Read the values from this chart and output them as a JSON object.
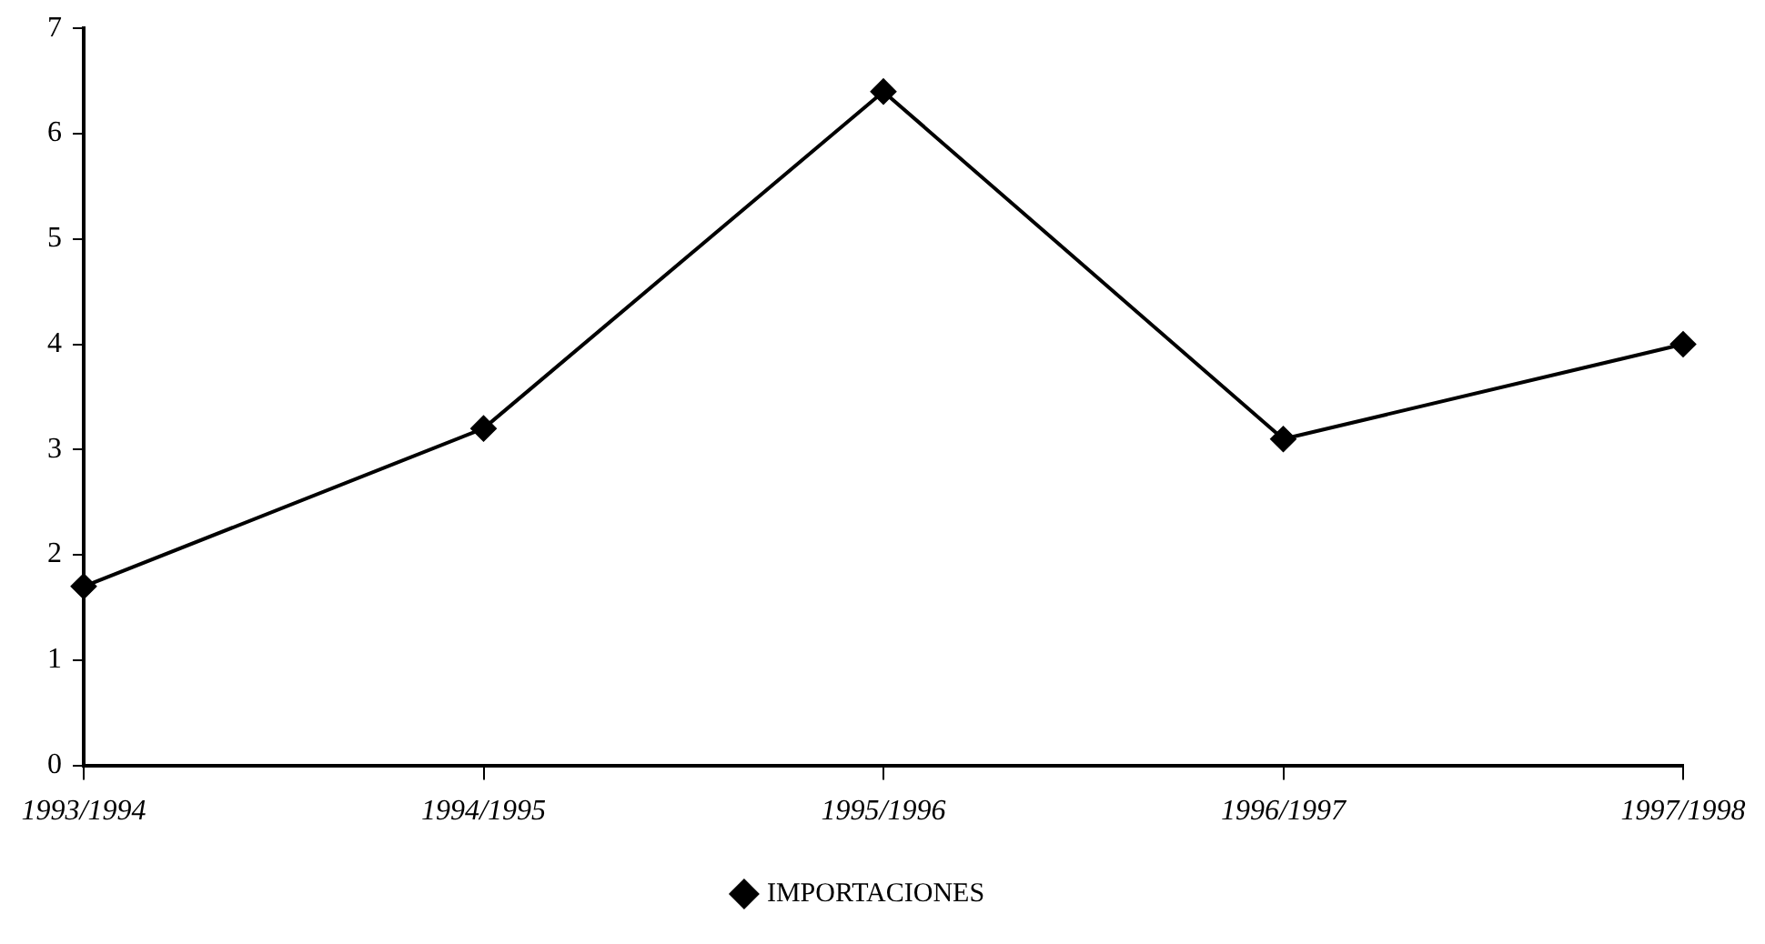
{
  "chart_data": {
    "type": "line",
    "categories": [
      "1993/1994",
      "1994/1995",
      "1995/1996",
      "1996/1997",
      "1997/1998"
    ],
    "series": [
      {
        "name": "IMPORTACIONES",
        "color": "#000000",
        "values": [
          1.7,
          3.2,
          6.4,
          3.1,
          4.0
        ]
      }
    ],
    "ylim": [
      0,
      7
    ],
    "yticks": [
      0,
      1,
      2,
      3,
      4,
      5,
      6,
      7
    ],
    "grid": false,
    "legend": "bottom",
    "marker": "diamond",
    "line_style": "solid"
  }
}
